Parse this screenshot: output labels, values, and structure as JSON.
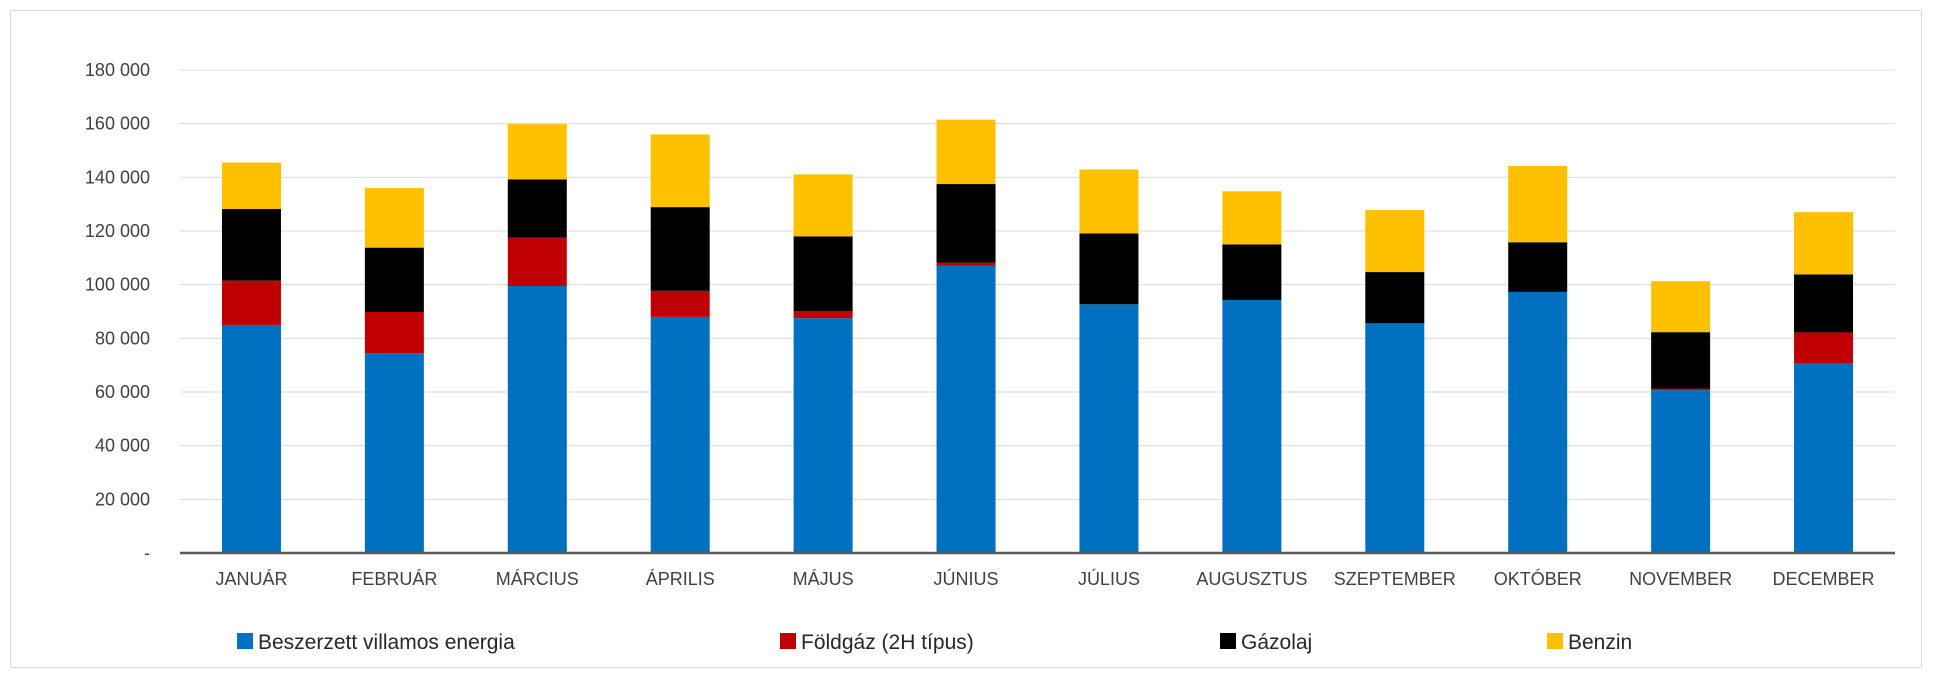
{
  "chart_data": {
    "type": "bar",
    "stacked": true,
    "categories": [
      "JANUÁR",
      "FEBRUÁR",
      "MÁRCIUS",
      "ÁPRILIS",
      "MÁJUS",
      "JÚNIUS",
      "JÚLIUS",
      "AUGUSZTUS",
      "SZEPTEMBER",
      "OKTÓBER",
      "NOVEMBER",
      "DECEMBER"
    ],
    "series": [
      {
        "name": "Beszerzett villamos energia",
        "color": "#0070C0",
        "values": [
          85000,
          74500,
          99500,
          88000,
          87500,
          107000,
          92700,
          94300,
          85600,
          97300,
          60700,
          70800
        ]
      },
      {
        "name": "Földgáz (2H típus)",
        "color": "#C00000",
        "values": [
          16500,
          15300,
          18000,
          9700,
          2700,
          1200,
          0,
          0,
          0,
          0,
          600,
          11400
        ]
      },
      {
        "name": "Gázolaj",
        "color": "#000000",
        "values": [
          26700,
          24000,
          21700,
          31200,
          27800,
          29300,
          26400,
          20700,
          19100,
          18500,
          21000,
          21600
        ]
      },
      {
        "name": "Benzin",
        "color": "#FFC000",
        "values": [
          17300,
          22200,
          20600,
          27100,
          23100,
          24000,
          23800,
          19800,
          23100,
          28400,
          19000,
          23200
        ]
      }
    ],
    "ylim": [
      0,
      180000
    ],
    "ytick_values": [
      0,
      20000,
      40000,
      60000,
      80000,
      100000,
      120000,
      140000,
      160000,
      180000
    ],
    "ytick_labels": [
      "-",
      "20 000",
      "40 000",
      "60 000",
      "80 000",
      "100 000",
      "120 000",
      "140 000",
      "160 000",
      "180 000"
    ],
    "grid": true,
    "legend_position": "bottom"
  }
}
